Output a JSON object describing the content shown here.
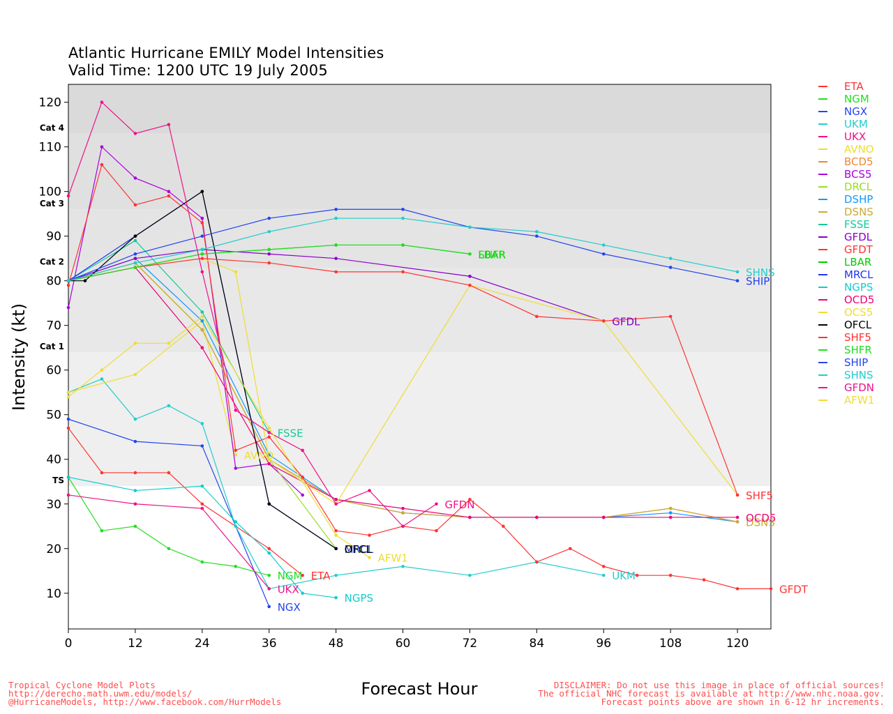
{
  "titles": {
    "line1": "Atlantic Hurricane EMILY Model Intensities",
    "line2": "Valid Time: 1200 UTC 19 July 2005"
  },
  "footer": {
    "left": [
      "Tropical Cyclone Model Plots",
      "http://derecho.math.uwm.edu/models/",
      "@HurricaneModels, http://www.facebook.com/HurrModels"
    ],
    "right": [
      "DISCLAIMER: Do not use this image in place of official sources!",
      "The official NHC forecast is available at http://www.nhc.noaa.gov.",
      "Forecast points above are shown in 6-12 hr increments."
    ]
  },
  "chart_data": {
    "type": "line",
    "xlabel": "Forecast Hour",
    "ylabel": "Intensity (kt)",
    "xlim": [
      0,
      126
    ],
    "ylim": [
      2,
      124
    ],
    "xticks": [
      0,
      12,
      24,
      36,
      48,
      60,
      72,
      84,
      96,
      108,
      120
    ],
    "yticks": [
      10,
      20,
      30,
      40,
      50,
      60,
      70,
      80,
      90,
      100,
      110,
      120
    ],
    "category_bands": [
      {
        "label": "TS",
        "from": 34,
        "to": 64,
        "color": "#efefef"
      },
      {
        "label": "Cat 1",
        "from": 64,
        "to": 83,
        "color": "#e8e8e8"
      },
      {
        "label": "Cat 2",
        "from": 83,
        "to": 96,
        "color": "#e4e4e4"
      },
      {
        "label": "Cat 3",
        "from": 96,
        "to": 113,
        "color": "#e0e0e0"
      },
      {
        "label": "Cat 4",
        "from": 113,
        "to": 124,
        "color": "#dadada"
      }
    ],
    "series": [
      {
        "name": "ETA",
        "color": "#ff3333",
        "x": [
          0,
          6,
          12,
          18,
          24,
          36,
          42
        ],
        "y": [
          47,
          37,
          37,
          37,
          30,
          20,
          14
        ],
        "label": "ETA"
      },
      {
        "name": "NGM",
        "color": "#22dd22",
        "x": [
          0,
          6,
          12,
          18,
          24,
          30,
          36
        ],
        "y": [
          36,
          24,
          25,
          20,
          17,
          16,
          14
        ],
        "label": "NGM"
      },
      {
        "name": "NGX",
        "color": "#2244ee",
        "x": [
          0,
          12,
          24,
          36
        ],
        "y": [
          49,
          44,
          43,
          7
        ],
        "label": "NGX"
      },
      {
        "name": "UKM",
        "color": "#22cccc",
        "x": [
          0,
          6,
          12,
          18,
          24,
          30,
          36,
          48,
          60,
          72,
          84,
          96
        ],
        "y": [
          55,
          58,
          49,
          52,
          48,
          25,
          11,
          14,
          16,
          14,
          17,
          14
        ],
        "label": "UKM"
      },
      {
        "name": "UKX",
        "color": "#ee1188",
        "x": [
          0,
          12,
          24,
          36
        ],
        "y": [
          32,
          30,
          29,
          11
        ],
        "label": "UKX"
      },
      {
        "name": "AVNO",
        "color": "#eedd33",
        "x": [
          0,
          12,
          24,
          30
        ],
        "y": [
          55,
          59,
          71,
          41
        ],
        "label": "AVNO"
      },
      {
        "name": "BCD5",
        "color": "#ee8833",
        "x": [
          0,
          12,
          24,
          36,
          48,
          60,
          72,
          84,
          96,
          108,
          120
        ],
        "y": [
          80,
          84,
          69,
          40,
          31,
          28,
          27,
          27,
          27,
          29,
          26
        ],
        "label": null
      },
      {
        "name": "BCS5",
        "color": "#aa00dd",
        "x": [
          0,
          6,
          12,
          18,
          24,
          30,
          36,
          42
        ],
        "y": [
          74,
          110,
          103,
          100,
          94,
          38,
          39,
          32
        ],
        "label": null
      },
      {
        "name": "DRCL",
        "color": "#99dd22",
        "x": [
          0,
          12,
          24,
          36,
          48
        ],
        "y": [
          80,
          84,
          69,
          40,
          20
        ],
        "label": "DRCL"
      },
      {
        "name": "DSHP",
        "color": "#1199ff",
        "x": [
          0,
          12,
          24,
          36,
          48,
          60,
          72,
          84,
          96,
          108,
          120
        ],
        "y": [
          80,
          85,
          71,
          41,
          31,
          28,
          27,
          27,
          27,
          28,
          26
        ],
        "label": null
      },
      {
        "name": "DSNS",
        "color": "#ccaa33",
        "x": [
          0,
          12,
          24,
          36,
          48,
          60,
          72,
          84,
          96,
          108,
          120
        ],
        "y": [
          80,
          84,
          69,
          40,
          31,
          28,
          27,
          27,
          27,
          29,
          26
        ],
        "label": "DSNS"
      },
      {
        "name": "FSSE",
        "color": "#11cc99",
        "x": [
          0,
          12,
          24,
          36
        ],
        "y": [
          80,
          89,
          73,
          46
        ],
        "label": "FSSE"
      },
      {
        "name": "GFDL",
        "color": "#8800cc",
        "x": [
          0,
          12,
          24,
          36,
          48,
          72,
          96
        ],
        "y": [
          80,
          85,
          87,
          86,
          85,
          81,
          71
        ],
        "label": "GFDL"
      },
      {
        "name": "GFDT",
        "color": "#ff3333",
        "x": [
          0,
          6,
          12,
          18,
          24,
          30,
          36,
          42,
          48,
          54,
          60,
          66,
          72,
          78,
          84,
          90,
          96,
          102,
          108,
          114,
          120,
          126
        ],
        "y": [
          79,
          106,
          97,
          99,
          93,
          42,
          45,
          36,
          24,
          23,
          25,
          24,
          31,
          25,
          17,
          20,
          16,
          14,
          14,
          13,
          11,
          11
        ],
        "label": "GFDT"
      },
      {
        "name": "LBAR",
        "color": "#00cc00",
        "x": [
          0,
          12,
          24,
          36,
          48,
          60,
          72
        ],
        "y": [
          80,
          83,
          86,
          87,
          88,
          88,
          86
        ],
        "label": "LBAR"
      },
      {
        "name": "MRCL",
        "color": "#2233ee",
        "x": [
          0,
          12,
          24,
          36,
          48
        ],
        "y": [
          80,
          90,
          100,
          30,
          20
        ],
        "label": "MRCL"
      },
      {
        "name": "NGPS",
        "color": "#11cccc",
        "x": [
          0,
          12,
          24,
          30,
          36,
          42,
          48
        ],
        "y": [
          36,
          33,
          34,
          26,
          19,
          10,
          9
        ],
        "label": "NGPS"
      },
      {
        "name": "OCD5",
        "color": "#ee0077",
        "x": [
          0,
          12,
          24,
          36,
          48,
          60,
          72,
          84,
          96,
          108,
          120
        ],
        "y": [
          80,
          83,
          65,
          39,
          31,
          29,
          27,
          27,
          27,
          27,
          27
        ],
        "label": "OCD5"
      },
      {
        "name": "OCS5",
        "color": "#eedd33",
        "x": [
          0,
          12,
          24,
          30,
          36,
          48,
          72,
          96,
          120
        ],
        "y": [
          80,
          83,
          85,
          82,
          40,
          30,
          79,
          71,
          32
        ],
        "label": null
      },
      {
        "name": "OFCL",
        "color": "#000000",
        "x": [
          0,
          3,
          12,
          24,
          36,
          48
        ],
        "y": [
          80,
          80,
          90,
          100,
          30,
          20
        ],
        "label": "OFCL"
      },
      {
        "name": "SHF5",
        "color": "#ff3333",
        "x": [
          0,
          12,
          24,
          36,
          48,
          60,
          72,
          84,
          96,
          108,
          120
        ],
        "y": [
          80,
          83,
          85,
          84,
          82,
          82,
          79,
          72,
          71,
          72,
          32
        ],
        "label": "SHF5"
      },
      {
        "name": "SHFR",
        "color": "#22dd22",
        "x": [
          0,
          12,
          24,
          36,
          48,
          60,
          72
        ],
        "y": [
          80,
          83,
          86,
          87,
          88,
          88,
          86
        ],
        "label": "SHFR"
      },
      {
        "name": "SHIP",
        "color": "#2244ee",
        "x": [
          0,
          12,
          24,
          36,
          48,
          60,
          72,
          84,
          96,
          108,
          120
        ],
        "y": [
          80,
          86,
          90,
          94,
          96,
          96,
          92,
          90,
          86,
          83,
          80
        ],
        "label": "SHIP"
      },
      {
        "name": "SHNS",
        "color": "#22cccc",
        "x": [
          0,
          12,
          24,
          36,
          48,
          60,
          72,
          84,
          96,
          108,
          120
        ],
        "y": [
          80,
          84,
          87,
          91,
          94,
          94,
          92,
          91,
          88,
          85,
          82
        ],
        "label": "SHNS"
      },
      {
        "name": "GFDN",
        "color": "#ee1188",
        "x": [
          0,
          6,
          12,
          18,
          24,
          30,
          36,
          42,
          48,
          54,
          60,
          66
        ],
        "y": [
          99,
          120,
          113,
          115,
          82,
          51,
          46,
          42,
          30,
          33,
          25,
          30
        ],
        "label": "GFDN"
      },
      {
        "name": "AFW1",
        "color": "#eedd33",
        "x": [
          0,
          6,
          12,
          18,
          24,
          36,
          48,
          54
        ],
        "y": [
          54,
          60,
          66,
          66,
          72,
          47,
          23,
          18
        ],
        "label": "AFW1"
      }
    ]
  }
}
